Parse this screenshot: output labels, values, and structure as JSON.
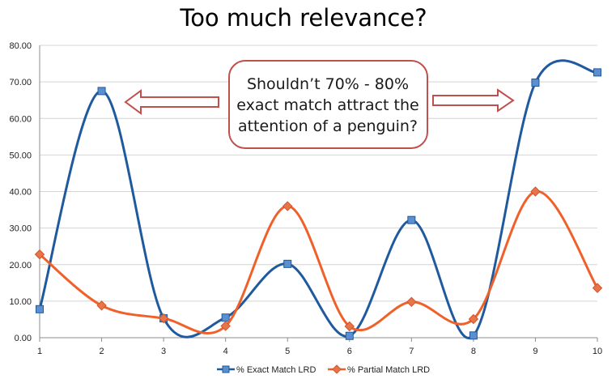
{
  "chart_data": {
    "type": "line",
    "title": "Too much relevance?",
    "xlabel": "",
    "ylabel": "",
    "categories": [
      "1",
      "2",
      "3",
      "4",
      "5",
      "6",
      "7",
      "8",
      "9",
      "10"
    ],
    "y_ticks": [
      "0.00",
      "10.00",
      "20.00",
      "30.00",
      "40.00",
      "50.00",
      "60.00",
      "70.00",
      "80.00"
    ],
    "ylim": [
      0,
      80
    ],
    "grid": true,
    "legend_position": "bottom",
    "series": [
      {
        "name": "% Exact Match LRD",
        "color": "#1f5a9e",
        "marker": "square",
        "values": [
          7.8,
          67.5,
          5.3,
          5.5,
          20.2,
          0.5,
          32.2,
          0.6,
          69.8,
          72.6
        ]
      },
      {
        "name": "% Partial Match LRD",
        "color": "#f0602a",
        "marker": "diamond",
        "values": [
          22.8,
          8.8,
          5.3,
          3.2,
          36.0,
          3.1,
          9.8,
          5.1,
          40.0,
          13.6
        ]
      }
    ],
    "annotation": {
      "lines": [
        "Shouldn’t 70% - 80%",
        "exact match attract the",
        "attention of a penguin?"
      ],
      "border_color": "#c0504d",
      "arrow_fill": "#ffffff"
    }
  }
}
